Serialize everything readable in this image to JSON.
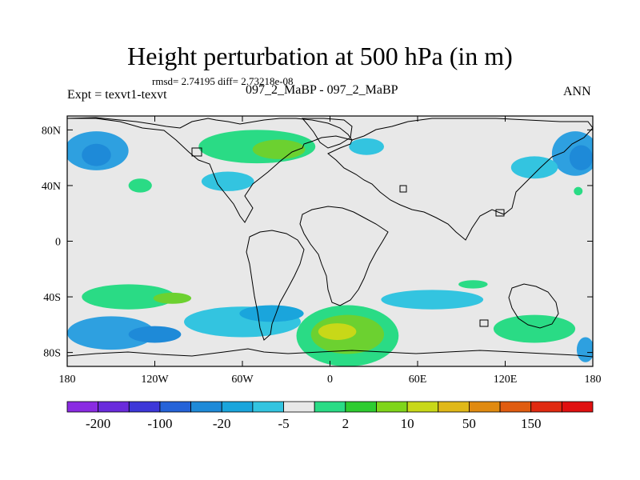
{
  "chart_data": {
    "type": "heatmap",
    "title": "Height perturbation at 500 hPa (in m)",
    "stats": "rmsd= 2.74195 diff= 2.73218e-08",
    "left_label": "Expt = texvt1-texvt",
    "center_label": "097_2_MaBP - 097_2_MaBP",
    "right_label": "ANN",
    "x_range": [
      -180,
      180
    ],
    "y_range": [
      -90,
      90
    ],
    "x_ticks": [
      {
        "value": -180,
        "label": "180"
      },
      {
        "value": -120,
        "label": "120W"
      },
      {
        "value": -60,
        "label": "60W"
      },
      {
        "value": 0,
        "label": "0"
      },
      {
        "value": 60,
        "label": "60E"
      },
      {
        "value": 120,
        "label": "120E"
      },
      {
        "value": 180,
        "label": "180"
      }
    ],
    "y_ticks": [
      {
        "value": 80,
        "label": "80N"
      },
      {
        "value": 40,
        "label": "40N"
      },
      {
        "value": 0,
        "label": "0"
      },
      {
        "value": -40,
        "label": "40S"
      },
      {
        "value": -80,
        "label": "80S"
      }
    ],
    "colorbar": {
      "colors": [
        "#8a2be2",
        "#6a2bdc",
        "#3d37d8",
        "#2563d8",
        "#1e8ad8",
        "#1aa5dc",
        "#33c4e0",
        "#e8e8e8",
        "#2adb85",
        "#2ecc30",
        "#7fd51a",
        "#c8d818",
        "#e0b818",
        "#e08a10",
        "#e05c10",
        "#e02a10",
        "#e01010"
      ],
      "labels": [
        "-200",
        "-100",
        "-20",
        "-5",
        "2",
        "10",
        "50",
        "150"
      ]
    },
    "anomalies": [
      {
        "lon": -160,
        "lat": 65,
        "rx": 22,
        "ry": 14,
        "color": "#2ea0e0"
      },
      {
        "lon": -160,
        "lat": 62,
        "rx": 10,
        "ry": 8,
        "color": "#1e8ad8"
      },
      {
        "lon": 168,
        "lat": 63,
        "rx": 16,
        "ry": 16,
        "color": "#2ea0e0"
      },
      {
        "lon": 172,
        "lat": 60,
        "rx": 8,
        "ry": 9,
        "color": "#1e8ad8"
      },
      {
        "lon": 140,
        "lat": 53,
        "rx": 16,
        "ry": 8,
        "color": "#33c4e0"
      },
      {
        "lon": -50,
        "lat": 68,
        "rx": 40,
        "ry": 12,
        "color": "#2adb85"
      },
      {
        "lon": -35,
        "lat": 66,
        "rx": 18,
        "ry": 7,
        "color": "#6cd130"
      },
      {
        "lon": -70,
        "lat": 43,
        "rx": 18,
        "ry": 7,
        "color": "#33c4e0"
      },
      {
        "lon": 25,
        "lat": 68,
        "rx": 12,
        "ry": 6,
        "color": "#33c4e0"
      },
      {
        "lon": -130,
        "lat": 40,
        "rx": 8,
        "ry": 5,
        "color": "#2adb85"
      },
      {
        "lon": 170,
        "lat": 36,
        "rx": 3,
        "ry": 3,
        "color": "#2adb85"
      },
      {
        "lon": -138,
        "lat": -40,
        "rx": 32,
        "ry": 9,
        "color": "#2adb85"
      },
      {
        "lon": -108,
        "lat": -41,
        "rx": 13,
        "ry": 4,
        "color": "#6cd130"
      },
      {
        "lon": -150,
        "lat": -66,
        "rx": 30,
        "ry": 12,
        "color": "#2ea0e0"
      },
      {
        "lon": -120,
        "lat": -67,
        "rx": 18,
        "ry": 6,
        "color": "#1e8ad8"
      },
      {
        "lon": -60,
        "lat": -58,
        "rx": 40,
        "ry": 11,
        "color": "#33c4e0"
      },
      {
        "lon": -40,
        "lat": -52,
        "rx": 22,
        "ry": 6,
        "color": "#1aa5dc"
      },
      {
        "lon": 12,
        "lat": -68,
        "rx": 35,
        "ry": 22,
        "color": "#2adb85"
      },
      {
        "lon": 12,
        "lat": -67,
        "rx": 25,
        "ry": 14,
        "color": "#6cd130"
      },
      {
        "lon": 5,
        "lat": -65,
        "rx": 13,
        "ry": 6,
        "color": "#c8d818"
      },
      {
        "lon": 140,
        "lat": -63,
        "rx": 28,
        "ry": 10,
        "color": "#2adb85"
      },
      {
        "lon": 175,
        "lat": -78,
        "rx": 6,
        "ry": 9,
        "color": "#2ea0e0"
      },
      {
        "lon": 70,
        "lat": -42,
        "rx": 35,
        "ry": 7,
        "color": "#33c4e0"
      },
      {
        "lon": 98,
        "lat": -31,
        "rx": 10,
        "ry": 3,
        "color": "#2adb85"
      }
    ]
  }
}
